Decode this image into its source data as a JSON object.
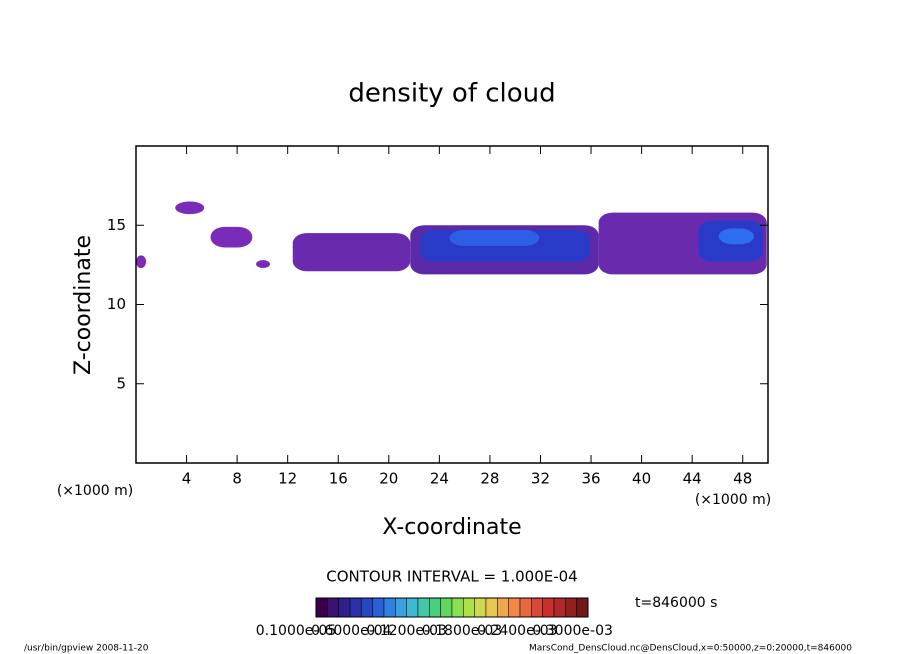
{
  "chart_data": {
    "type": "contour",
    "title": "density of cloud",
    "x_label": "X-coordinate",
    "y_label": "Z-coordinate",
    "x_unit_labels": [
      "(×1000 m)",
      "(×1000 m)"
    ],
    "xlim": [
      0,
      50
    ],
    "xticks": [
      4,
      8,
      12,
      16,
      20,
      24,
      28,
      32,
      36,
      40,
      44,
      48
    ],
    "ylim": [
      0,
      20
    ],
    "yticks": [
      5,
      10,
      15
    ],
    "regions": [
      {
        "x": [
          0,
          0.8
        ],
        "z": [
          12.3,
          13.1
        ],
        "value": 1e-05,
        "color": "#7a2bb8"
      },
      {
        "x": [
          3.1,
          5.4
        ],
        "z": [
          15.7,
          16.5
        ],
        "value": 1e-05,
        "color": "#7a2bb8"
      },
      {
        "x": [
          5.9,
          9.2
        ],
        "z": [
          13.6,
          14.9
        ],
        "value": 1e-05,
        "color": "#7a2bb8"
      },
      {
        "x": [
          9.5,
          10.6
        ],
        "z": [
          12.3,
          12.8
        ],
        "value": 1e-05,
        "color": "#7a2bb8"
      },
      {
        "x": [
          12.4,
          21.7
        ],
        "z": [
          12.1,
          14.5
        ],
        "value": 1e-05,
        "color": "#6a2aae"
      },
      {
        "x": [
          21.7,
          36.6
        ],
        "z": [
          11.9,
          15
        ],
        "value": 1e-05,
        "color": "#5a2aa8"
      },
      {
        "x": [
          22.5,
          35.9
        ],
        "z": [
          12.7,
          14.7
        ],
        "value": 3e-05,
        "color": "#2a3ac8"
      },
      {
        "x": [
          24.8,
          31.9
        ],
        "z": [
          13.7,
          14.7
        ],
        "value": 5e-05,
        "color": "#2e5ee6"
      },
      {
        "x": [
          36.6,
          49.9
        ],
        "z": [
          11.9,
          15.8
        ],
        "value": 1e-05,
        "color": "#6a2aae"
      },
      {
        "x": [
          44.5,
          49.6
        ],
        "z": [
          12.7,
          15.3
        ],
        "value": 3e-05,
        "color": "#2a3ac8"
      },
      {
        "x": [
          46.1,
          48.9
        ],
        "z": [
          13.8,
          14.8
        ],
        "value": 5e-05,
        "color": "#2e6cf0"
      }
    ],
    "contour_interval": "CONTOUR INTERVAL = 1.000E-04",
    "time_label": "t=846000 s",
    "colorbar": {
      "colors": [
        "#3a0050",
        "#3a1070",
        "#30208a",
        "#2a30a8",
        "#2848c0",
        "#2a60d8",
        "#3080e0",
        "#3aa0e0",
        "#40b8d0",
        "#40c8a8",
        "#48d080",
        "#60d860",
        "#88e050",
        "#b0e048",
        "#d0d850",
        "#e8c850",
        "#f0a850",
        "#f08848",
        "#e86840",
        "#d84838",
        "#c83030",
        "#b02828",
        "#902020",
        "#701818"
      ],
      "labels": [
        "0.1000e-05",
        "0.6000e-04",
        "0.1200e-03",
        "0.1800e-03",
        "0.2400e-03",
        "0.3000e-03"
      ]
    },
    "footer_left": "/usr/bin/gpview  2008-11-20",
    "footer_right": "MarsCond_DensCloud.nc@DensCloud,x=0:50000,z=0:20000,t=846000"
  }
}
